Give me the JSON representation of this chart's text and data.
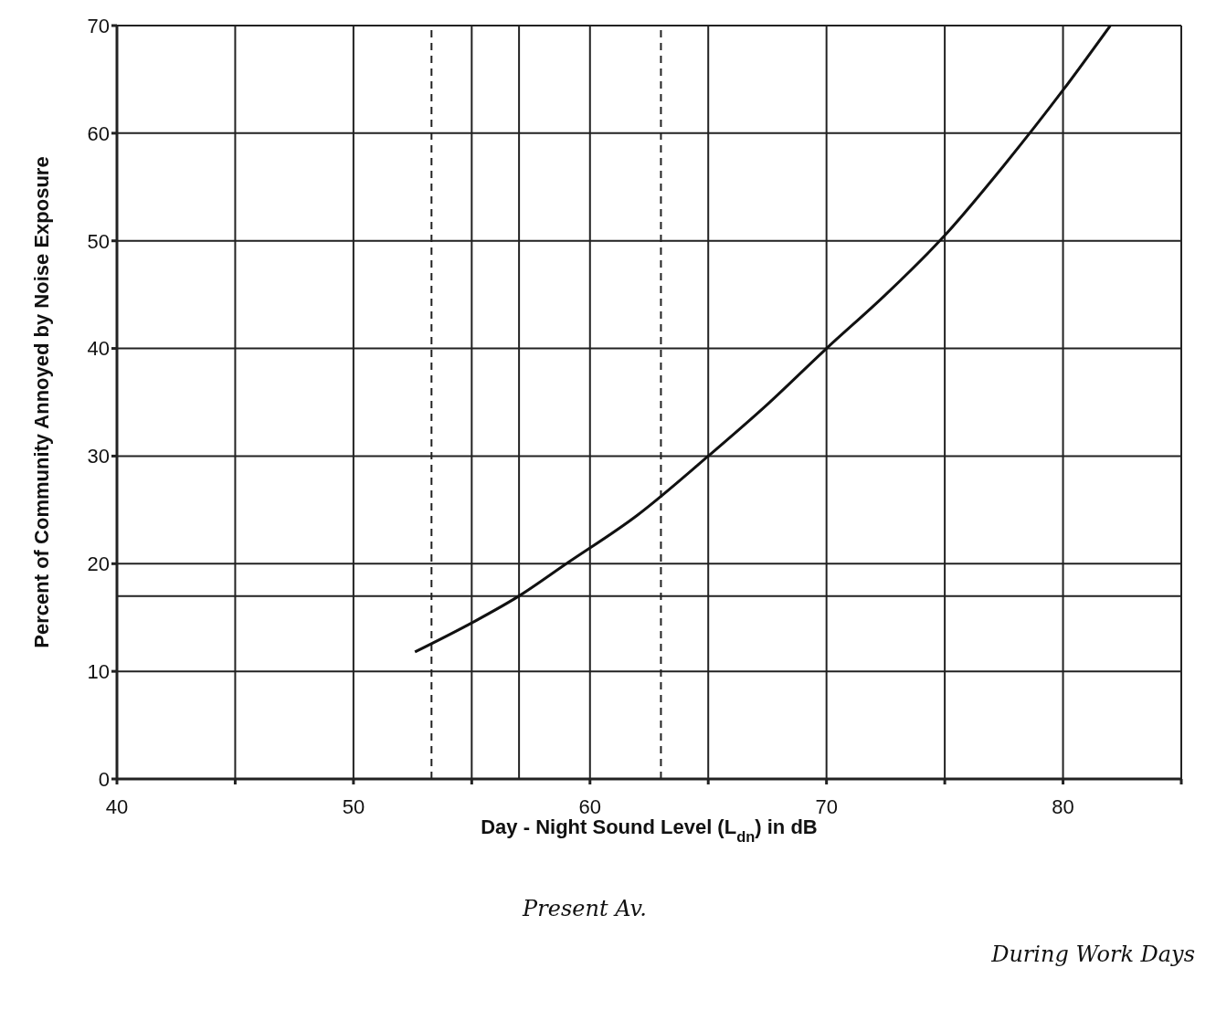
{
  "chart_data": {
    "type": "line",
    "xlabel": "Day - Night Sound Level (L$_{dn}$) in dB",
    "ylabel": "Percent of Community Annoyed by Noise Exposure",
    "series": [
      {
        "color": "#111111",
        "x": [
          52.6,
          55,
          57,
          59,
          62,
          65,
          67.5,
          70,
          72.5,
          75,
          77.5,
          80,
          82
        ],
        "values": [
          11.8,
          14.5,
          17,
          20,
          24.5,
          30,
          34.8,
          40,
          45,
          50.5,
          57,
          64,
          70
        ]
      }
    ],
    "xlim": [
      40,
      85
    ],
    "ylim": [
      0,
      70
    ],
    "xticks": [
      40,
      {
        "value": 45,
        "label": null
      },
      50,
      {
        "value": 55,
        "label": null
      },
      60,
      {
        "value": 65,
        "label": null
      },
      70,
      {
        "value": 75,
        "label": null
      },
      80,
      {
        "value": 85,
        "label": null
      }
    ],
    "yticks": [
      0,
      10,
      20,
      30,
      40,
      50,
      60,
      70
    ],
    "grid": true,
    "marker": "none",
    "line_style": "solid",
    "annotations": [
      "During Work Days"
    ],
    "ref_lines": [
      {
        "axis": "x",
        "value": 53.3,
        "line_style": "dashed"
      },
      {
        "axis": "x",
        "value": 57,
        "label": "Present Av.",
        "line_style": "solid"
      },
      {
        "axis": "x",
        "value": 63,
        "line_style": "dashed"
      },
      {
        "axis": "y",
        "value": 17,
        "line_style": "solid"
      }
    ]
  }
}
